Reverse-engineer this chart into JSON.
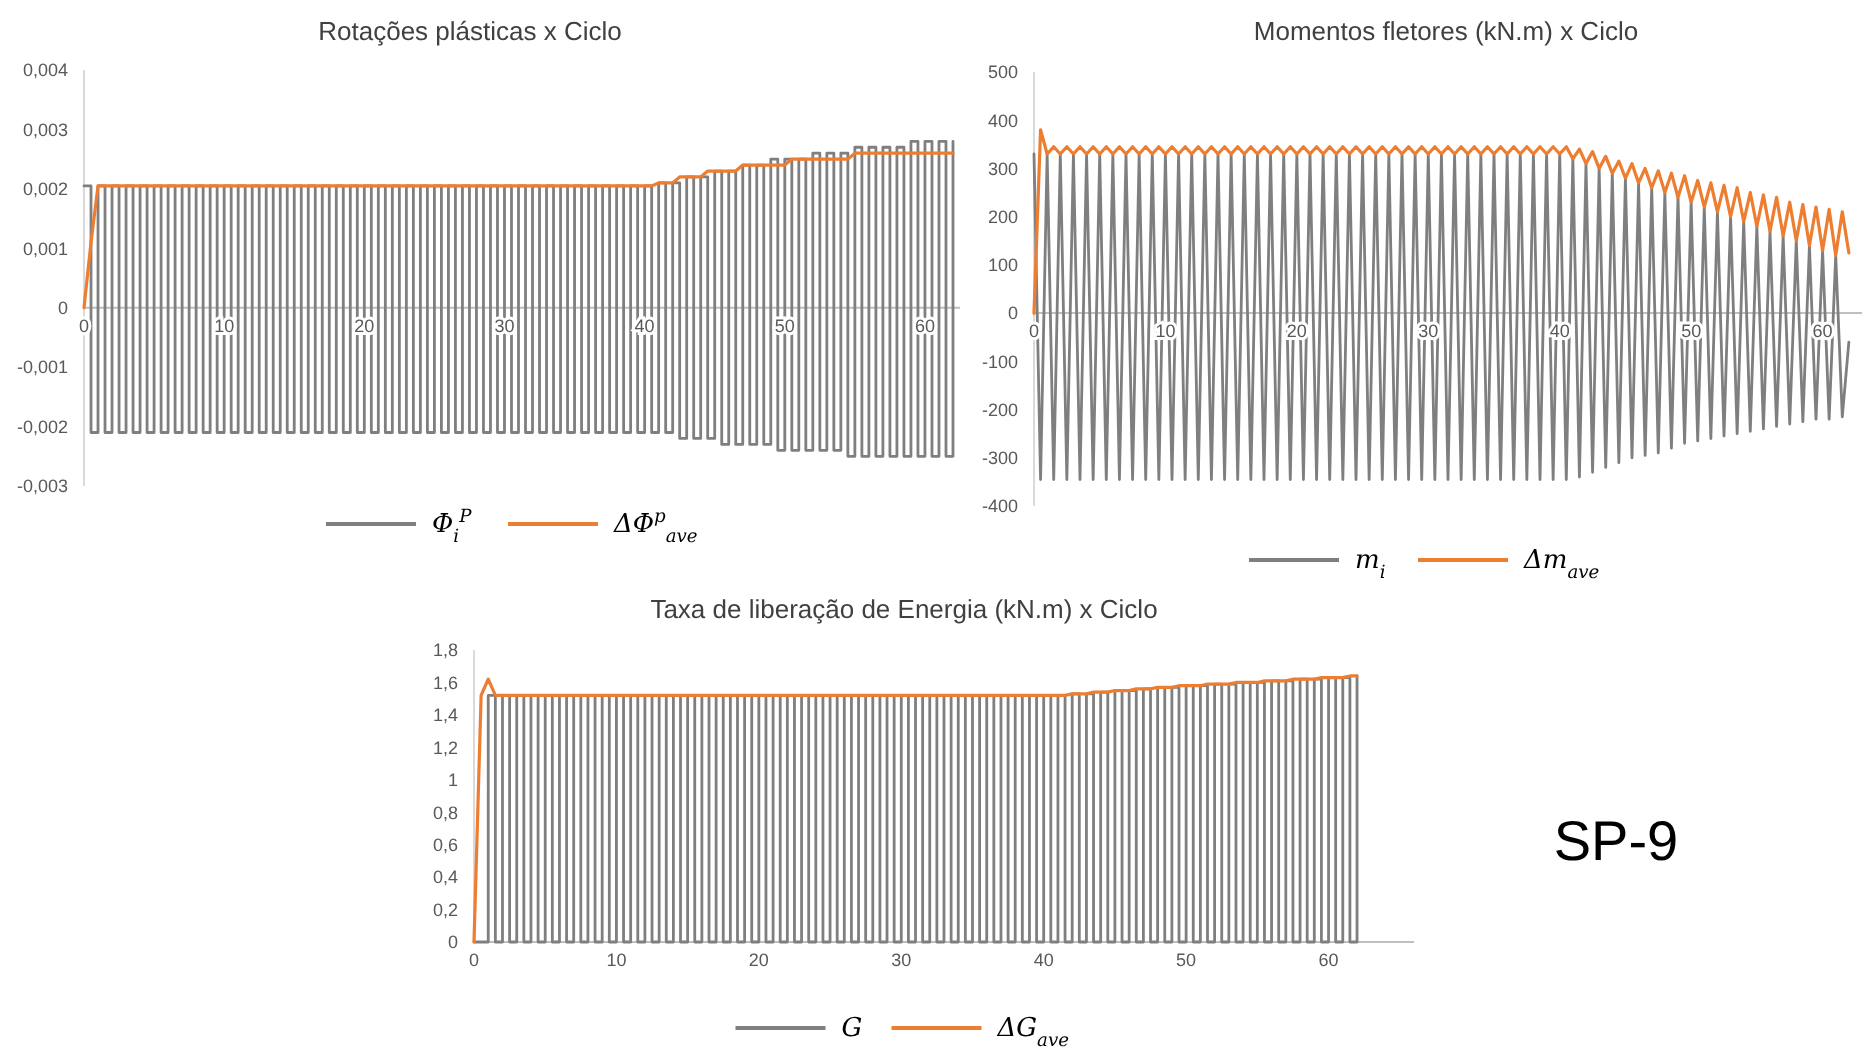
{
  "chart_data": [
    {
      "type": "line",
      "title": "Rotações plásticas x Ciclo",
      "legend": "bottom",
      "xlim": [
        0,
        62.5
      ],
      "xticks": [
        0,
        10,
        20,
        30,
        40,
        50,
        60
      ],
      "ylim": [
        -0.003,
        0.004
      ],
      "yticks": [
        {
          "value": -0.003,
          "label": "-0,003"
        },
        {
          "value": -0.002,
          "label": "-0,002"
        },
        {
          "value": -0.001,
          "label": "-0,001"
        },
        {
          "value": 0,
          "label": "0"
        },
        {
          "value": 0.001,
          "label": "0,001"
        },
        {
          "value": 0.002,
          "label": "0,002"
        },
        {
          "value": 0.003,
          "label": "0,003"
        },
        {
          "value": 0.004,
          "label": "0,004"
        }
      ],
      "x": [
        0,
        0.5,
        1,
        1.5,
        2,
        2.5,
        3,
        3.5,
        4,
        4.5,
        5,
        5.5,
        6,
        6.5,
        7,
        7.5,
        8,
        8.5,
        9,
        9.5,
        10,
        10.5,
        11,
        11.5,
        12,
        12.5,
        13,
        13.5,
        14,
        14.5,
        15,
        15.5,
        16,
        16.5,
        17,
        17.5,
        18,
        18.5,
        19,
        19.5,
        20,
        20.5,
        21,
        21.5,
        22,
        22.5,
        23,
        23.5,
        24,
        24.5,
        25,
        25.5,
        26,
        26.5,
        27,
        27.5,
        28,
        28.5,
        29,
        29.5,
        30,
        30.5,
        31,
        31.5,
        32,
        32.5,
        33,
        33.5,
        34,
        34.5,
        35,
        35.5,
        36,
        36.5,
        37,
        37.5,
        38,
        38.5,
        39,
        39.5,
        40,
        40.5,
        41,
        41.5,
        42,
        42.5,
        43,
        43.5,
        44,
        44.5,
        45,
        45.5,
        46,
        46.5,
        47,
        47.5,
        48,
        48.5,
        49,
        49.5,
        50,
        50.5,
        51,
        51.5,
        52,
        52.5,
        53,
        53.5,
        54,
        54.5,
        55,
        55.5,
        56,
        56.5,
        57,
        57.5,
        58,
        58.5,
        59,
        59.5,
        60,
        60.5,
        61,
        61.5,
        62
      ],
      "series": [
        {
          "name": "Φ$_{i}$$^{P}$",
          "type": "step",
          "color": "#7f7f7f",
          "values": [
            0.00205,
            -0.0021,
            0.00205,
            -0.0021,
            0.00205,
            -0.0021,
            0.00205,
            -0.0021,
            0.00205,
            -0.0021,
            0.00205,
            -0.0021,
            0.00205,
            -0.0021,
            0.00205,
            -0.0021,
            0.00205,
            -0.0021,
            0.00205,
            -0.0021,
            0.00205,
            -0.0021,
            0.00205,
            -0.0021,
            0.00205,
            -0.0021,
            0.00205,
            -0.0021,
            0.00205,
            -0.0021,
            0.00205,
            -0.0021,
            0.00205,
            -0.0021,
            0.00205,
            -0.0021,
            0.00205,
            -0.0021,
            0.00205,
            -0.0021,
            0.00205,
            -0.0021,
            0.00205,
            -0.0021,
            0.00205,
            -0.0021,
            0.00205,
            -0.0021,
            0.00205,
            -0.0021,
            0.00205,
            -0.0021,
            0.00205,
            -0.0021,
            0.00205,
            -0.0021,
            0.00205,
            -0.0021,
            0.00205,
            -0.0021,
            0.00205,
            -0.0021,
            0.00205,
            -0.0021,
            0.00205,
            -0.0021,
            0.00205,
            -0.0021,
            0.00205,
            -0.0021,
            0.00205,
            -0.0021,
            0.00205,
            -0.0021,
            0.00205,
            -0.0021,
            0.00205,
            -0.0021,
            0.00205,
            -0.0021,
            0.00205,
            -0.0021,
            0.0021,
            -0.0021,
            0.0021,
            -0.0022,
            0.0022,
            -0.0022,
            0.0022,
            -0.0022,
            0.0023,
            -0.0023,
            0.0023,
            -0.0023,
            0.0024,
            -0.0023,
            0.0024,
            -0.0023,
            0.0025,
            -0.0024,
            0.0025,
            -0.0024,
            0.0025,
            -0.0024,
            0.0026,
            -0.0024,
            0.0026,
            -0.0024,
            0.0026,
            -0.0025,
            0.0027,
            -0.0025,
            0.0027,
            -0.0025,
            0.0027,
            -0.0025,
            0.0027,
            -0.0025,
            0.0028,
            -0.0025,
            0.0028,
            -0.0025,
            0.0028,
            -0.0025,
            0.0028
          ]
        },
        {
          "name": "ΔΦ$^{p}$$_{ave}$",
          "type": "line",
          "color": "#ed7d31",
          "values": [
            0,
            0.0011,
            0.00205,
            0.00205,
            0.00205,
            0.00205,
            0.00205,
            0.00205,
            0.00205,
            0.00205,
            0.00205,
            0.00205,
            0.00205,
            0.00205,
            0.00205,
            0.00205,
            0.00205,
            0.00205,
            0.00205,
            0.00205,
            0.00205,
            0.00205,
            0.00205,
            0.00205,
            0.00205,
            0.00205,
            0.00205,
            0.00205,
            0.00205,
            0.00205,
            0.00205,
            0.00205,
            0.00205,
            0.00205,
            0.00205,
            0.00205,
            0.00205,
            0.00205,
            0.00205,
            0.00205,
            0.00205,
            0.00205,
            0.00205,
            0.00205,
            0.00205,
            0.00205,
            0.00205,
            0.00205,
            0.00205,
            0.00205,
            0.00205,
            0.00205,
            0.00205,
            0.00205,
            0.00205,
            0.00205,
            0.00205,
            0.00205,
            0.00205,
            0.00205,
            0.00205,
            0.00205,
            0.00205,
            0.00205,
            0.00205,
            0.00205,
            0.00205,
            0.00205,
            0.00205,
            0.00205,
            0.00205,
            0.00205,
            0.00205,
            0.00205,
            0.00205,
            0.00205,
            0.00205,
            0.00205,
            0.00205,
            0.00205,
            0.00205,
            0.00205,
            0.0021,
            0.0021,
            0.0021,
            0.0022,
            0.0022,
            0.0022,
            0.0022,
            0.0023,
            0.0023,
            0.0023,
            0.0023,
            0.0023,
            0.0024,
            0.0024,
            0.0024,
            0.0024,
            0.0024,
            0.0024,
            0.0024,
            0.0025,
            0.0025,
            0.0025,
            0.0025,
            0.0025,
            0.0025,
            0.0025,
            0.0025,
            0.0025,
            0.0026,
            0.0026,
            0.0026,
            0.0026,
            0.0026,
            0.0026,
            0.0026,
            0.0026,
            0.0026,
            0.0026,
            0.0026,
            0.0026,
            0.0026,
            0.0026,
            0.0026
          ]
        }
      ]
    },
    {
      "type": "line",
      "title": "Momentos fletores (kN.m) x Ciclo",
      "legend": "bottom",
      "xlim": [
        0,
        63
      ],
      "xticks": [
        0,
        10,
        20,
        30,
        40,
        50,
        60
      ],
      "ylim": [
        -400,
        500
      ],
      "yticks": [
        -400,
        -300,
        -200,
        -100,
        0,
        100,
        200,
        300,
        400,
        500
      ],
      "x": [
        0,
        0.5,
        1,
        1.5,
        2,
        2.5,
        3,
        3.5,
        4,
        4.5,
        5,
        5.5,
        6,
        6.5,
        7,
        7.5,
        8,
        8.5,
        9,
        9.5,
        10,
        10.5,
        11,
        11.5,
        12,
        12.5,
        13,
        13.5,
        14,
        14.5,
        15,
        15.5,
        16,
        16.5,
        17,
        17.5,
        18,
        18.5,
        19,
        19.5,
        20,
        20.5,
        21,
        21.5,
        22,
        22.5,
        23,
        23.5,
        24,
        24.5,
        25,
        25.5,
        26,
        26.5,
        27,
        27.5,
        28,
        28.5,
        29,
        29.5,
        30,
        30.5,
        31,
        31.5,
        32,
        32.5,
        33,
        33.5,
        34,
        34.5,
        35,
        35.5,
        36,
        36.5,
        37,
        37.5,
        38,
        38.5,
        39,
        39.5,
        40,
        40.5,
        41,
        41.5,
        42,
        42.5,
        43,
        43.5,
        44,
        44.5,
        45,
        45.5,
        46,
        46.5,
        47,
        47.5,
        48,
        48.5,
        49,
        49.5,
        50,
        50.5,
        51,
        51.5,
        52,
        52.5,
        53,
        53.5,
        54,
        54.5,
        55,
        55.5,
        56,
        56.5,
        57,
        57.5,
        58,
        58.5,
        59,
        59.5,
        60,
        60.5,
        61,
        61.5,
        62
      ],
      "series": [
        {
          "name": "m$_{i}$",
          "type": "line",
          "color": "#7f7f7f",
          "values": [
            330,
            -345,
            330,
            -345,
            330,
            -345,
            330,
            -345,
            330,
            -345,
            330,
            -345,
            330,
            -345,
            330,
            -345,
            330,
            -345,
            330,
            -345,
            330,
            -345,
            330,
            -345,
            330,
            -345,
            330,
            -345,
            330,
            -345,
            330,
            -345,
            330,
            -345,
            330,
            -345,
            330,
            -345,
            330,
            -345,
            330,
            -345,
            330,
            -345,
            330,
            -345,
            330,
            -345,
            330,
            -345,
            330,
            -345,
            330,
            -345,
            330,
            -345,
            330,
            -345,
            330,
            -345,
            330,
            -345,
            330,
            -345,
            330,
            -345,
            330,
            -345,
            330,
            -345,
            330,
            -345,
            330,
            -345,
            330,
            -345,
            330,
            -345,
            330,
            -345,
            330,
            -345,
            320,
            -340,
            310,
            -330,
            300,
            -320,
            290,
            -310,
            280,
            -300,
            270,
            -295,
            260,
            -290,
            250,
            -280,
            240,
            -270,
            230,
            -265,
            220,
            -260,
            210,
            -255,
            200,
            -250,
            190,
            -245,
            180,
            -240,
            170,
            -235,
            160,
            -230,
            150,
            -225,
            140,
            -220,
            130,
            -220,
            120,
            -215,
            -60
          ]
        },
        {
          "name": "Δm$_{ave}$",
          "type": "line",
          "color": "#ed7d31",
          "values": [
            0,
            380,
            330,
            345,
            330,
            345,
            330,
            345,
            330,
            345,
            330,
            345,
            330,
            345,
            330,
            345,
            330,
            345,
            330,
            345,
            330,
            345,
            330,
            345,
            330,
            345,
            330,
            345,
            330,
            345,
            330,
            345,
            330,
            345,
            330,
            345,
            330,
            345,
            330,
            345,
            330,
            345,
            330,
            345,
            330,
            345,
            330,
            345,
            330,
            345,
            330,
            345,
            330,
            345,
            330,
            345,
            330,
            345,
            330,
            345,
            330,
            345,
            330,
            345,
            330,
            345,
            330,
            345,
            330,
            345,
            330,
            345,
            330,
            345,
            330,
            345,
            330,
            345,
            330,
            345,
            330,
            345,
            320,
            340,
            310,
            335,
            300,
            325,
            290,
            315,
            280,
            310,
            270,
            300,
            260,
            295,
            250,
            290,
            240,
            285,
            230,
            275,
            220,
            270,
            210,
            265,
            200,
            260,
            190,
            250,
            180,
            245,
            170,
            240,
            160,
            230,
            150,
            225,
            140,
            220,
            130,
            215,
            120,
            210,
            125
          ]
        }
      ]
    },
    {
      "type": "line",
      "title": "Taxa de liberação de Energia (kN.m) x Ciclo",
      "legend": "bottom",
      "annotations": [
        "SP-9"
      ],
      "xlim": [
        0,
        66
      ],
      "xticks": [
        0,
        10,
        20,
        30,
        40,
        50,
        60
      ],
      "ylim": [
        0,
        1.8
      ],
      "yticks": [
        0,
        {
          "value": 0.2,
          "label": "0,2"
        },
        {
          "value": 0.4,
          "label": "0,4"
        },
        {
          "value": 0.6,
          "label": "0,6"
        },
        {
          "value": 0.8,
          "label": "0,8"
        },
        1,
        {
          "value": 1.2,
          "label": "1,2"
        },
        {
          "value": 1.4,
          "label": "1,4"
        },
        {
          "value": 1.6,
          "label": "1,6"
        },
        {
          "value": 1.8,
          "label": "1,8"
        }
      ],
      "x": [
        0,
        0.5,
        1,
        1.5,
        2,
        2.5,
        3,
        3.5,
        4,
        4.5,
        5,
        5.5,
        6,
        6.5,
        7,
        7.5,
        8,
        8.5,
        9,
        9.5,
        10,
        10.5,
        11,
        11.5,
        12,
        12.5,
        13,
        13.5,
        14,
        14.5,
        15,
        15.5,
        16,
        16.5,
        17,
        17.5,
        18,
        18.5,
        19,
        19.5,
        20,
        20.5,
        21,
        21.5,
        22,
        22.5,
        23,
        23.5,
        24,
        24.5,
        25,
        25.5,
        26,
        26.5,
        27,
        27.5,
        28,
        28.5,
        29,
        29.5,
        30,
        30.5,
        31,
        31.5,
        32,
        32.5,
        33,
        33.5,
        34,
        34.5,
        35,
        35.5,
        36,
        36.5,
        37,
        37.5,
        38,
        38.5,
        39,
        39.5,
        40,
        40.5,
        41,
        41.5,
        42,
        42.5,
        43,
        43.5,
        44,
        44.5,
        45,
        45.5,
        46,
        46.5,
        47,
        47.5,
        48,
        48.5,
        49,
        49.5,
        50,
        50.5,
        51,
        51.5,
        52,
        52.5,
        53,
        53.5,
        54,
        54.5,
        55,
        55.5,
        56,
        56.5,
        57,
        57.5,
        58,
        58.5,
        59,
        59.5,
        60,
        60.5,
        61,
        61.5,
        62
      ],
      "series": [
        {
          "name": "G",
          "type": "step",
          "color": "#7f7f7f",
          "values": [
            0,
            0,
            1.52,
            0,
            1.52,
            0,
            1.52,
            0,
            1.52,
            0,
            1.52,
            0,
            1.52,
            0,
            1.52,
            0,
            1.52,
            0,
            1.52,
            0,
            1.52,
            0,
            1.52,
            0,
            1.52,
            0,
            1.52,
            0,
            1.52,
            0,
            1.52,
            0,
            1.52,
            0,
            1.52,
            0,
            1.52,
            0,
            1.52,
            0,
            1.52,
            0,
            1.52,
            0,
            1.52,
            0,
            1.52,
            0,
            1.52,
            0,
            1.52,
            0,
            1.52,
            0,
            1.52,
            0,
            1.52,
            0,
            1.52,
            0,
            1.52,
            0,
            1.52,
            0,
            1.52,
            0,
            1.52,
            0,
            1.52,
            0,
            1.52,
            0,
            1.52,
            0,
            1.52,
            0,
            1.52,
            0,
            1.52,
            0,
            1.52,
            0,
            1.52,
            0,
            1.53,
            0,
            1.53,
            0,
            1.54,
            0,
            1.55,
            0,
            1.55,
            0,
            1.56,
            0,
            1.57,
            0,
            1.57,
            0,
            1.58,
            0,
            1.58,
            0,
            1.59,
            0,
            1.59,
            0,
            1.6,
            0,
            1.6,
            0,
            1.61,
            0,
            1.61,
            0,
            1.62,
            0,
            1.62,
            0,
            1.63,
            0,
            1.63,
            0,
            1.64
          ]
        },
        {
          "name": "ΔG$_{ave}$",
          "type": "line",
          "color": "#ed7d31",
          "values": [
            0,
            1.52,
            1.62,
            1.52,
            1.52,
            1.52,
            1.52,
            1.52,
            1.52,
            1.52,
            1.52,
            1.52,
            1.52,
            1.52,
            1.52,
            1.52,
            1.52,
            1.52,
            1.52,
            1.52,
            1.52,
            1.52,
            1.52,
            1.52,
            1.52,
            1.52,
            1.52,
            1.52,
            1.52,
            1.52,
            1.52,
            1.52,
            1.52,
            1.52,
            1.52,
            1.52,
            1.52,
            1.52,
            1.52,
            1.52,
            1.52,
            1.52,
            1.52,
            1.52,
            1.52,
            1.52,
            1.52,
            1.52,
            1.52,
            1.52,
            1.52,
            1.52,
            1.52,
            1.52,
            1.52,
            1.52,
            1.52,
            1.52,
            1.52,
            1.52,
            1.52,
            1.52,
            1.52,
            1.52,
            1.52,
            1.52,
            1.52,
            1.52,
            1.52,
            1.52,
            1.52,
            1.52,
            1.52,
            1.52,
            1.52,
            1.52,
            1.52,
            1.52,
            1.52,
            1.52,
            1.52,
            1.52,
            1.52,
            1.52,
            1.53,
            1.53,
            1.53,
            1.54,
            1.54,
            1.54,
            1.55,
            1.55,
            1.55,
            1.56,
            1.56,
            1.56,
            1.57,
            1.57,
            1.57,
            1.58,
            1.58,
            1.58,
            1.58,
            1.59,
            1.59,
            1.59,
            1.59,
            1.6,
            1.6,
            1.6,
            1.6,
            1.61,
            1.61,
            1.61,
            1.61,
            1.62,
            1.62,
            1.62,
            1.62,
            1.63,
            1.63,
            1.63,
            1.63,
            1.64,
            1.64
          ]
        }
      ]
    }
  ]
}
